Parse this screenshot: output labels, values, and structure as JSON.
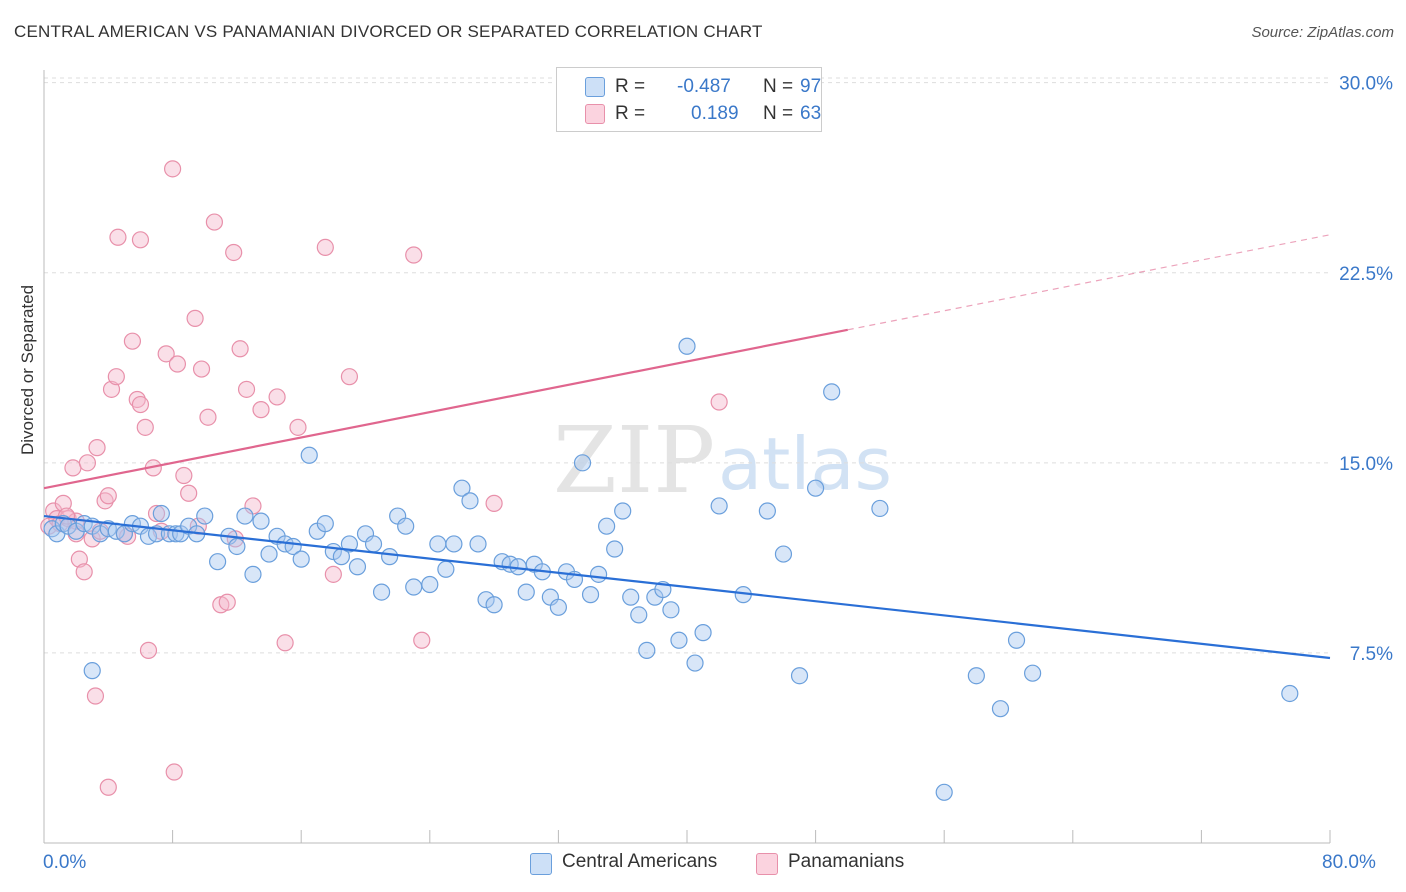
{
  "title": "CENTRAL AMERICAN VS PANAMANIAN DIVORCED OR SEPARATED CORRELATION CHART",
  "source": "Source: ZipAtlas.com",
  "watermark": {
    "zip": "ZIP",
    "atlas": "atlas"
  },
  "legend": {
    "rows": [
      {
        "r_label": "R =",
        "r_value": "-0.487",
        "n_label": "N =",
        "n_value": "97",
        "color": "#a8c8f0"
      },
      {
        "r_label": "R =",
        "r_value": "0.189",
        "n_label": "N =",
        "n_value": "63",
        "color": "#f5b8cb"
      }
    ]
  },
  "bottom_legend": [
    {
      "label": "Central Americans",
      "color": "#a8c8f0"
    },
    {
      "label": "Panamanians",
      "color": "#f5b8cb"
    }
  ],
  "colors": {
    "blue_fill": "#a8c8f0",
    "blue_stroke": "#6a9fdc",
    "blue_line": "#2a6fd6",
    "pink_fill": "#f5b8cb",
    "pink_stroke": "#e890aa",
    "pink_line": "#e0668e",
    "grid": "#dddddd",
    "tick_label": "#3a78c9"
  },
  "chart_data": {
    "type": "scatter",
    "title": "CENTRAL AMERICAN VS PANAMANIAN DIVORCED OR SEPARATED CORRELATION CHART",
    "xlabel": "",
    "ylabel": "Divorced or Separated",
    "xlim": [
      0,
      80
    ],
    "ylim": [
      0,
      30.5
    ],
    "x_tick_labels": [
      "0.0%",
      "80.0%"
    ],
    "y_ticks": [
      7.5,
      15.0,
      22.5,
      30.0
    ],
    "y_tick_labels": [
      "7.5%",
      "15.0%",
      "22.5%",
      "30.0%"
    ],
    "grid": true,
    "series": [
      {
        "name": "Central Americans",
        "trend": {
          "x1": 0,
          "y1": 12.9,
          "x2": 80,
          "y2": 7.3,
          "dashed_from": null
        },
        "points": [
          [
            0.5,
            12.4
          ],
          [
            0.8,
            12.2
          ],
          [
            1.2,
            12.6
          ],
          [
            1.5,
            12.5
          ],
          [
            2.0,
            12.3
          ],
          [
            2.5,
            12.6
          ],
          [
            3.0,
            12.5
          ],
          [
            3.5,
            12.2
          ],
          [
            4.0,
            12.4
          ],
          [
            4.5,
            12.3
          ],
          [
            5.0,
            12.2
          ],
          [
            5.5,
            12.6
          ],
          [
            6.0,
            12.5
          ],
          [
            6.5,
            12.1
          ],
          [
            7.0,
            12.2
          ],
          [
            7.3,
            13.0
          ],
          [
            7.8,
            12.2
          ],
          [
            8.2,
            12.2
          ],
          [
            8.5,
            12.2
          ],
          [
            9.0,
            12.5
          ],
          [
            9.5,
            12.2
          ],
          [
            10.0,
            12.9
          ],
          [
            10.8,
            11.1
          ],
          [
            11.5,
            12.1
          ],
          [
            12.0,
            11.7
          ],
          [
            12.5,
            12.9
          ],
          [
            13.0,
            10.6
          ],
          [
            13.5,
            12.7
          ],
          [
            14.0,
            11.4
          ],
          [
            14.5,
            12.1
          ],
          [
            15.0,
            11.8
          ],
          [
            15.5,
            11.7
          ],
          [
            16.0,
            11.2
          ],
          [
            16.5,
            15.3
          ],
          [
            17.0,
            12.3
          ],
          [
            17.5,
            12.6
          ],
          [
            18.0,
            11.5
          ],
          [
            18.5,
            11.3
          ],
          [
            19.0,
            11.8
          ],
          [
            19.5,
            10.9
          ],
          [
            20.0,
            12.2
          ],
          [
            20.5,
            11.8
          ],
          [
            21.0,
            9.9
          ],
          [
            21.5,
            11.3
          ],
          [
            22.0,
            12.9
          ],
          [
            22.5,
            12.5
          ],
          [
            23.0,
            10.1
          ],
          [
            24.0,
            10.2
          ],
          [
            24.5,
            11.8
          ],
          [
            25.0,
            10.8
          ],
          [
            25.5,
            11.8
          ],
          [
            26.0,
            14.0
          ],
          [
            26.5,
            13.5
          ],
          [
            27.0,
            11.8
          ],
          [
            27.5,
            9.6
          ],
          [
            28.0,
            9.4
          ],
          [
            28.5,
            11.1
          ],
          [
            29.0,
            11.0
          ],
          [
            29.5,
            10.9
          ],
          [
            30.0,
            9.9
          ],
          [
            30.5,
            11.0
          ],
          [
            31.0,
            10.7
          ],
          [
            31.5,
            9.7
          ],
          [
            32.0,
            9.3
          ],
          [
            32.5,
            10.7
          ],
          [
            33.0,
            10.4
          ],
          [
            33.5,
            15.0
          ],
          [
            34.0,
            9.8
          ],
          [
            34.5,
            10.6
          ],
          [
            35.0,
            12.5
          ],
          [
            35.5,
            11.6
          ],
          [
            36.0,
            13.1
          ],
          [
            36.5,
            9.7
          ],
          [
            37.0,
            9.0
          ],
          [
            37.5,
            7.6
          ],
          [
            38.0,
            9.7
          ],
          [
            38.5,
            10.0
          ],
          [
            39.0,
            9.2
          ],
          [
            39.5,
            8.0
          ],
          [
            40.0,
            19.6
          ],
          [
            40.5,
            7.1
          ],
          [
            41.0,
            8.3
          ],
          [
            42.0,
            13.3
          ],
          [
            43.5,
            9.8
          ],
          [
            45.0,
            13.1
          ],
          [
            46.0,
            11.4
          ],
          [
            47.0,
            6.6
          ],
          [
            48.0,
            14.0
          ],
          [
            49.0,
            17.8
          ],
          [
            52.0,
            13.2
          ],
          [
            56.0,
            2.0
          ],
          [
            58.0,
            6.6
          ],
          [
            59.5,
            5.3
          ],
          [
            60.5,
            8.0
          ],
          [
            61.5,
            6.7
          ],
          [
            77.5,
            5.9
          ],
          [
            3.0,
            6.8
          ]
        ]
      },
      {
        "name": "Panamanians",
        "trend": {
          "x1": 0,
          "y1": 14.0,
          "x2": 80,
          "y2": 24.0,
          "dashed_from": 50
        },
        "points": [
          [
            0.3,
            12.5
          ],
          [
            0.6,
            13.1
          ],
          [
            0.8,
            12.8
          ],
          [
            1.0,
            12.6
          ],
          [
            1.2,
            13.4
          ],
          [
            1.5,
            12.8
          ],
          [
            1.8,
            14.8
          ],
          [
            2.0,
            12.2
          ],
          [
            2.2,
            11.2
          ],
          [
            2.5,
            10.7
          ],
          [
            2.7,
            15.0
          ],
          [
            3.0,
            12.0
          ],
          [
            3.3,
            15.6
          ],
          [
            3.5,
            12.3
          ],
          [
            3.8,
            13.5
          ],
          [
            4.0,
            13.7
          ],
          [
            4.2,
            17.9
          ],
          [
            4.5,
            18.4
          ],
          [
            4.6,
            23.9
          ],
          [
            5.0,
            12.2
          ],
          [
            5.5,
            19.8
          ],
          [
            5.8,
            17.5
          ],
          [
            6.0,
            17.3
          ],
          [
            6.3,
            16.4
          ],
          [
            6.5,
            7.6
          ],
          [
            6.8,
            14.8
          ],
          [
            7.0,
            13.0
          ],
          [
            7.3,
            12.3
          ],
          [
            7.6,
            19.3
          ],
          [
            8.0,
            26.6
          ],
          [
            8.3,
            18.9
          ],
          [
            8.7,
            14.5
          ],
          [
            9.0,
            13.8
          ],
          [
            9.4,
            20.7
          ],
          [
            9.8,
            18.7
          ],
          [
            10.2,
            16.8
          ],
          [
            10.6,
            24.5
          ],
          [
            11.0,
            9.4
          ],
          [
            11.4,
            9.5
          ],
          [
            11.8,
            23.3
          ],
          [
            12.2,
            19.5
          ],
          [
            12.6,
            17.9
          ],
          [
            13.0,
            13.3
          ],
          [
            13.5,
            17.1
          ],
          [
            14.5,
            17.6
          ],
          [
            15.0,
            7.9
          ],
          [
            15.8,
            16.4
          ],
          [
            17.5,
            23.5
          ],
          [
            18.0,
            10.6
          ],
          [
            19.0,
            18.4
          ],
          [
            23.0,
            23.2
          ],
          [
            23.5,
            8.0
          ],
          [
            28.0,
            13.4
          ],
          [
            42.0,
            17.4
          ],
          [
            3.2,
            5.8
          ],
          [
            4.0,
            2.2
          ],
          [
            8.1,
            2.8
          ],
          [
            6.0,
            23.8
          ],
          [
            2.0,
            12.7
          ],
          [
            1.4,
            12.9
          ],
          [
            5.2,
            12.1
          ],
          [
            9.6,
            12.5
          ],
          [
            11.9,
            12.0
          ]
        ]
      }
    ]
  }
}
